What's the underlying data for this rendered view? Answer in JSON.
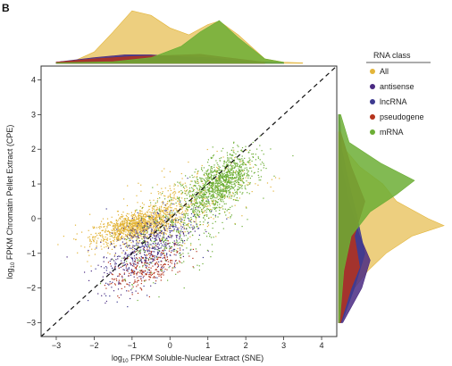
{
  "panel_label": "B",
  "chart_data": {
    "type": "scatter",
    "title": "",
    "xlabel": {
      "prefix": "log",
      "sub": "10",
      "suffix": " FPKM Soluble-Nuclear Extract (SNE)"
    },
    "ylabel": {
      "prefix": "log",
      "sub": "10",
      "suffix": " FPKM Chromatin Pellet Extract (CPE)"
    },
    "xlim": [
      -3.4,
      4.4
    ],
    "ylim": [
      -3.4,
      4.4
    ],
    "xticks": [
      -3,
      -2,
      -1,
      0,
      1,
      2,
      3,
      4
    ],
    "yticks": [
      -3,
      -2,
      -1,
      0,
      1,
      2,
      3,
      4
    ],
    "xtick_labels": [
      "−3",
      "−2",
      "−1",
      "0",
      "1",
      "2",
      "3",
      "4"
    ],
    "ytick_labels": [
      "−3",
      "−2",
      "−1",
      "0",
      "1",
      "2",
      "3",
      "4"
    ],
    "reference_line": {
      "style": "dashed",
      "slope": 1,
      "intercept": 0
    },
    "legend": {
      "title": "RNA class",
      "placement": "right",
      "entries": [
        "All",
        "antisense",
        "lncRNA",
        "pseudogene",
        "mRNA"
      ]
    },
    "series": [
      {
        "name": "All",
        "color": "#e3b53a",
        "clusters": [
          {
            "x": -0.9,
            "y": -0.2,
            "sx": 0.55,
            "sy": 0.25,
            "n": 1100
          },
          {
            "x": 0.2,
            "y": 0.3,
            "sx": 0.9,
            "sy": 0.6,
            "n": 500
          }
        ],
        "density_x": [
          [
            -3,
            0.02
          ],
          [
            -2.5,
            0.05
          ],
          [
            -2,
            0.2
          ],
          [
            -1.5,
            0.55
          ],
          [
            -1,
            0.92
          ],
          [
            -0.5,
            0.84
          ],
          [
            0,
            0.62
          ],
          [
            0.5,
            0.5
          ],
          [
            1,
            0.68
          ],
          [
            1.3,
            0.74
          ],
          [
            1.8,
            0.5
          ],
          [
            2.5,
            0.08
          ],
          [
            3,
            0.02
          ],
          [
            3.5,
            0.01
          ]
        ],
        "density_y": [
          [
            -3,
            0.02
          ],
          [
            -2.5,
            0.06
          ],
          [
            -2,
            0.15
          ],
          [
            -1.5,
            0.28
          ],
          [
            -1,
            0.45
          ],
          [
            -0.5,
            0.7
          ],
          [
            -0.2,
            1.0
          ],
          [
            0,
            0.85
          ],
          [
            0.5,
            0.55
          ],
          [
            1,
            0.42
          ],
          [
            1.5,
            0.2
          ],
          [
            2,
            0.06
          ],
          [
            2.5,
            0.02
          ],
          [
            3,
            0.01
          ]
        ]
      },
      {
        "name": "antisense",
        "color": "#4a2a82",
        "clusters": [
          {
            "x": -0.7,
            "y": -0.9,
            "sx": 0.6,
            "sy": 0.55,
            "n": 320
          }
        ],
        "density_x": [
          [
            -3,
            0.02
          ],
          [
            -2,
            0.1
          ],
          [
            -1.2,
            0.15
          ],
          [
            -0.5,
            0.15
          ],
          [
            0.5,
            0.1
          ],
          [
            1.5,
            0.04
          ],
          [
            2.5,
            0.01
          ]
        ],
        "density_y": [
          [
            -3,
            0.04
          ],
          [
            -2,
            0.22
          ],
          [
            -1.2,
            0.3
          ],
          [
            -0.5,
            0.2
          ],
          [
            0.5,
            0.1
          ],
          [
            1.5,
            0.03
          ],
          [
            2.5,
            0.01
          ]
        ]
      },
      {
        "name": "lncRNA",
        "color": "#3d3a90",
        "clusters": [
          {
            "x": -0.5,
            "y": -0.7,
            "sx": 0.6,
            "sy": 0.6,
            "n": 320
          }
        ],
        "density_x": [
          [
            -3,
            0.02
          ],
          [
            -2,
            0.08
          ],
          [
            -1,
            0.14
          ],
          [
            0,
            0.13
          ],
          [
            1,
            0.1
          ],
          [
            2,
            0.04
          ],
          [
            3,
            0.01
          ]
        ],
        "density_y": [
          [
            -3,
            0.03
          ],
          [
            -2,
            0.15
          ],
          [
            -1,
            0.25
          ],
          [
            0,
            0.18
          ],
          [
            1,
            0.1
          ],
          [
            2,
            0.03
          ],
          [
            3,
            0.01
          ]
        ]
      },
      {
        "name": "pseudogene",
        "color": "#b5331c",
        "clusters": [
          {
            "x": -0.6,
            "y": -1.4,
            "sx": 0.5,
            "sy": 0.35,
            "n": 260
          }
        ],
        "density_x": [
          [
            -3,
            0.02
          ],
          [
            -2,
            0.08
          ],
          [
            -1,
            0.12
          ],
          [
            0,
            0.14
          ],
          [
            0.8,
            0.16
          ],
          [
            1.5,
            0.1
          ],
          [
            2.5,
            0.02
          ]
        ],
        "density_y": [
          [
            -3,
            0.02
          ],
          [
            -2,
            0.12
          ],
          [
            -1.4,
            0.2
          ],
          [
            -0.5,
            0.15
          ],
          [
            0.5,
            0.25
          ],
          [
            1.5,
            0.12
          ],
          [
            2.5,
            0.02
          ]
        ]
      },
      {
        "name": "mRNA",
        "color": "#6cae35",
        "clusters": [
          {
            "x": 1.3,
            "y": 1.0,
            "sx": 0.45,
            "sy": 0.45,
            "n": 1100
          },
          {
            "x": 0.2,
            "y": -0.2,
            "sx": 0.8,
            "sy": 0.8,
            "n": 300
          }
        ],
        "density_x": [
          [
            -3,
            0.01
          ],
          [
            -1.5,
            0.03
          ],
          [
            -0.5,
            0.1
          ],
          [
            0.3,
            0.3
          ],
          [
            0.8,
            0.55
          ],
          [
            1.3,
            0.75
          ],
          [
            1.8,
            0.45
          ],
          [
            2.5,
            0.08
          ],
          [
            3,
            0.02
          ]
        ],
        "density_y": [
          [
            -3,
            0.01
          ],
          [
            -1.5,
            0.05
          ],
          [
            -0.5,
            0.12
          ],
          [
            0.2,
            0.3
          ],
          [
            0.7,
            0.55
          ],
          [
            1.1,
            0.72
          ],
          [
            1.6,
            0.4
          ],
          [
            2.2,
            0.1
          ],
          [
            3,
            0.02
          ]
        ]
      }
    ]
  }
}
